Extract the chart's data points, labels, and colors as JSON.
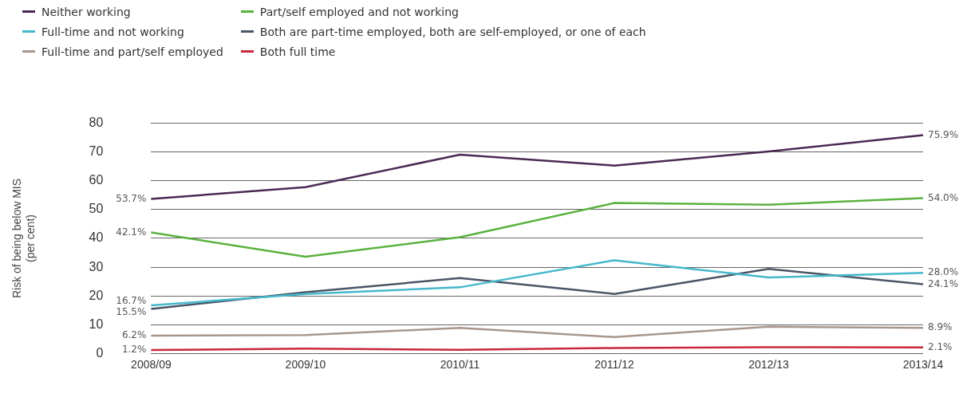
{
  "chart_data": {
    "type": "line",
    "ylabel": "Risk of being below MIS\n(per cent)",
    "categories": [
      "2008/09",
      "2009/10",
      "2010/11",
      "2011/12",
      "2012/13",
      "2013/14"
    ],
    "series": [
      {
        "name": "Neither working",
        "color": "#4a2a55",
        "values": [
          53.7,
          57.8,
          69.1,
          65.3,
          70.2,
          75.9
        ],
        "value_labels": [
          "53.7%",
          null,
          null,
          null,
          null,
          "75.9%"
        ]
      },
      {
        "name": "Full-time and not working",
        "color": "#45b8cc",
        "values": [
          16.7,
          20.7,
          23.0,
          32.4,
          26.4,
          28.0
        ],
        "value_labels": [
          "16.7%",
          null,
          null,
          null,
          null,
          "28.0%"
        ]
      },
      {
        "name": "Full-time and part/self employed",
        "color": "#a8968c",
        "values": [
          6.2,
          6.4,
          8.9,
          5.7,
          9.3,
          8.9
        ],
        "value_labels": [
          "6.2%",
          null,
          null,
          null,
          null,
          "8.9%"
        ]
      },
      {
        "name": "Part/self employed and not working",
        "color": "#5bb140",
        "values": [
          42.1,
          33.6,
          40.4,
          52.3,
          51.7,
          54.0
        ],
        "value_labels": [
          "42.1%",
          null,
          null,
          null,
          null,
          "54.0%"
        ]
      },
      {
        "name": "Both are part-time employed, both are self-employed, or one of each",
        "color": "#4a5566",
        "values": [
          15.5,
          21.3,
          26.2,
          20.7,
          29.4,
          24.1
        ],
        "value_labels": [
          "15.5%",
          null,
          null,
          null,
          null,
          "24.1%"
        ]
      },
      {
        "name": "Both full time",
        "color": "#c8283c",
        "values": [
          1.2,
          1.7,
          1.3,
          1.9,
          2.2,
          2.1
        ],
        "value_labels": [
          "1.2%",
          null,
          null,
          null,
          null,
          "2.1%"
        ]
      }
    ],
    "ylim": [
      0,
      80
    ],
    "yticks": [
      0,
      10,
      20,
      30,
      40,
      50,
      60,
      70,
      80
    ],
    "grid": "y",
    "legend": "top left",
    "marker": "none",
    "line_style": "solid"
  }
}
